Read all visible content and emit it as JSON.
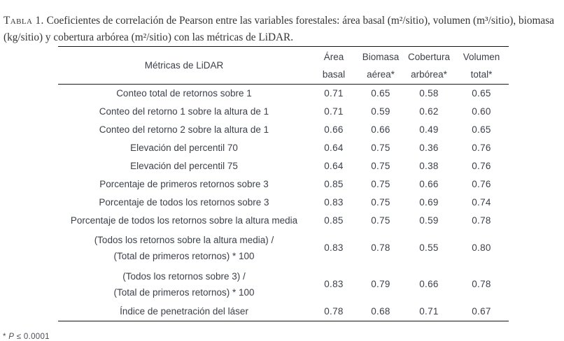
{
  "caption": {
    "label": "Tabla 1.",
    "text": " Coeficientes de correlación de Pearson entre las variables forestales: área basal (m²/sitio), volumen (m³/sitio), biomasa (kg/sitio) y cobertura arbórea (m²/sitio) con las métricas de LiDAR."
  },
  "table": {
    "header": {
      "metric_col": "Métricas de LiDAR",
      "columns": [
        {
          "line1": "Área",
          "line2": "basal"
        },
        {
          "line1": "Biomasa",
          "line2": "aérea*"
        },
        {
          "line1": "Cobertura",
          "line2": "arbórea*"
        },
        {
          "line1": "Volumen",
          "line2": "total*"
        }
      ]
    },
    "rows": [
      {
        "metric": [
          "Conteo total de retornos sobre 1"
        ],
        "values": [
          "0.71",
          "0.65",
          "0.58",
          "0.65"
        ]
      },
      {
        "metric": [
          "Conteo del retorno 1 sobre la altura de 1"
        ],
        "values": [
          "0.71",
          "0.59",
          "0.62",
          "0.60"
        ]
      },
      {
        "metric": [
          "Conteo del retorno 2 sobre la altura de 1"
        ],
        "values": [
          "0.66",
          "0.66",
          "0.49",
          "0.65"
        ]
      },
      {
        "metric": [
          "Elevación del percentil 70"
        ],
        "values": [
          "0.64",
          "0.75",
          "0.36",
          "0.76"
        ]
      },
      {
        "metric": [
          "Elevación del percentil 75"
        ],
        "values": [
          "0.64",
          "0.75",
          "0.38",
          "0.76"
        ]
      },
      {
        "metric": [
          "Porcentaje de primeros retornos sobre 3"
        ],
        "values": [
          "0.85",
          "0.75",
          "0.66",
          "0.76"
        ]
      },
      {
        "metric": [
          "Porcentaje de todos los retornos sobre 3"
        ],
        "values": [
          "0.83",
          "0.75",
          "0.69",
          "0.74"
        ]
      },
      {
        "metric": [
          "Porcentaje de todos los retornos sobre la altura media"
        ],
        "values": [
          "0.85",
          "0.75",
          "0.59",
          "0.78"
        ]
      },
      {
        "metric": [
          "(Todos los retornos sobre la altura media) /",
          "(Total de primeros retornos) * 100"
        ],
        "values": [
          "0.83",
          "0.78",
          "0.55",
          "0.80"
        ]
      },
      {
        "metric": [
          "(Todos los retornos sobre 3) /",
          "(Total de primeros retornos) * 100"
        ],
        "values": [
          "0.83",
          "0.79",
          "0.66",
          "0.78"
        ]
      },
      {
        "metric": [
          "Índice de penetración del láser"
        ],
        "values": [
          "0.78",
          "0.68",
          "0.71",
          "0.67"
        ]
      }
    ]
  },
  "footnote": {
    "star": "*",
    "symbol": "P",
    "rest": "≤ 0.0001"
  },
  "chart_data": {
    "type": "table",
    "title": "Tabla 1. Coeficientes de correlación de Pearson entre las variables forestales y las métricas de LiDAR",
    "columns": [
      "Métricas de LiDAR",
      "Área basal",
      "Biomasa aérea*",
      "Cobertura arbórea*",
      "Volumen total*"
    ],
    "rows": [
      [
        "Conteo total de retornos sobre 1",
        0.71,
        0.65,
        0.58,
        0.65
      ],
      [
        "Conteo del retorno 1 sobre la altura de 1",
        0.71,
        0.59,
        0.62,
        0.6
      ],
      [
        "Conteo del retorno 2 sobre la altura de 1",
        0.66,
        0.66,
        0.49,
        0.65
      ],
      [
        "Elevación del percentil 70",
        0.64,
        0.75,
        0.36,
        0.76
      ],
      [
        "Elevación del percentil 75",
        0.64,
        0.75,
        0.38,
        0.76
      ],
      [
        "Porcentaje de primeros retornos sobre 3",
        0.85,
        0.75,
        0.66,
        0.76
      ],
      [
        "Porcentaje de todos los retornos sobre 3",
        0.83,
        0.75,
        0.69,
        0.74
      ],
      [
        "Porcentaje de todos los retornos sobre la altura media",
        0.85,
        0.75,
        0.59,
        0.78
      ],
      [
        "(Todos los retornos sobre la altura media) / (Total de primeros retornos) * 100",
        0.83,
        0.78,
        0.55,
        0.8
      ],
      [
        "(Todos los retornos sobre 3) / (Total de primeros retornos) * 100",
        0.83,
        0.79,
        0.66,
        0.78
      ],
      [
        "Índice de penetración del láser",
        0.78,
        0.68,
        0.71,
        0.67
      ]
    ],
    "footnote": "* P ≤ 0.0001"
  }
}
